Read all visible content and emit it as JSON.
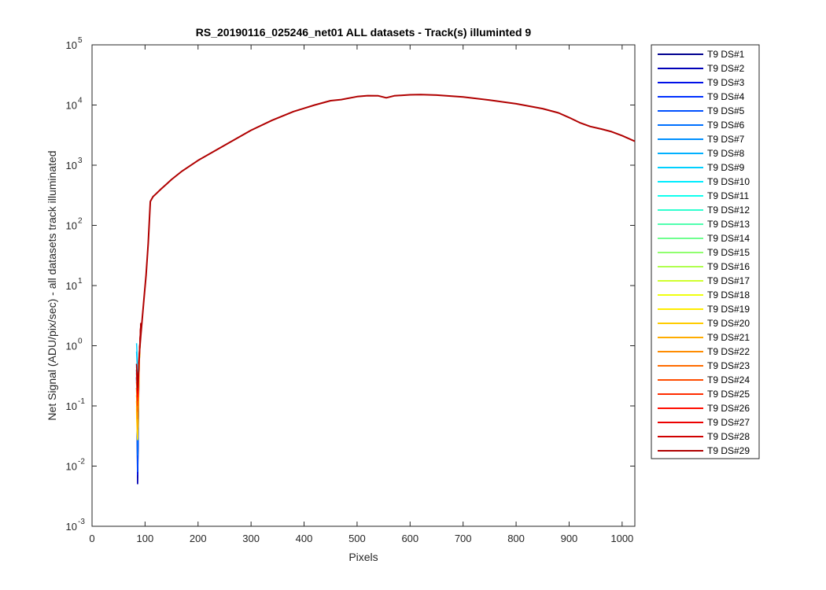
{
  "chart_data": {
    "type": "line",
    "title": "RS_20190116_025246_net01 ALL datasets - Track(s) illuminted 9",
    "xlabel": "Pixels",
    "ylabel": "Net Signal (ADU/pix/sec) - all datasets track illuminated",
    "xlim": [
      0,
      1024
    ],
    "ylim": [
      0.001,
      100000
    ],
    "yscale": "log",
    "grid": false,
    "legend_position": "outside-right",
    "x_ticks": [
      "0",
      "100",
      "200",
      "300",
      "400",
      "500",
      "600",
      "700",
      "800",
      "900",
      "1000"
    ],
    "y_tick_exponents": [
      "-3",
      "-2",
      "-1",
      "0",
      "1",
      "2",
      "3",
      "4",
      "5"
    ],
    "y_tick_base": "10",
    "main_curve": {
      "x": [
        88,
        90,
        92,
        95,
        98,
        102,
        106,
        110,
        115,
        120,
        130,
        140,
        150,
        170,
        200,
        230,
        260,
        300,
        340,
        380,
        420,
        450,
        470,
        500,
        520,
        540,
        555,
        570,
        600,
        620,
        650,
        700,
        750,
        800,
        850,
        880,
        900,
        920,
        940,
        960,
        980,
        1000,
        1024
      ],
      "y": [
        0.5,
        0.9,
        1.5,
        3,
        6,
        15,
        50,
        250,
        300,
        330,
        400,
        480,
        580,
        800,
        1200,
        1700,
        2400,
        3800,
        5600,
        7800,
        10000,
        11800,
        12300,
        13800,
        14300,
        14200,
        13200,
        14200,
        14800,
        14900,
        14600,
        13600,
        12100,
        10500,
        8700,
        7400,
        6200,
        5100,
        4400,
        4000,
        3600,
        3100,
        2500
      ]
    },
    "low_signal_segment": {
      "x": [
        84,
        85,
        86,
        87,
        88,
        89,
        90,
        91,
        92
      ],
      "y_by_dataset": [
        [
          0.3,
          0.05,
          0.005,
          0.02,
          0.15,
          0.6,
          0.9,
          1.4,
          2.2
        ],
        [
          0.4,
          0.06,
          0.005,
          0.03,
          0.2,
          0.5,
          0.8,
          1.3,
          2.1
        ],
        [
          0.3,
          0.1,
          0.007,
          0.04,
          0.25,
          0.6,
          0.9,
          1.4,
          2.2
        ],
        [
          0.5,
          0.2,
          0.01,
          0.05,
          0.3,
          0.6,
          0.9,
          1.5,
          2.3
        ],
        [
          0.2,
          0.08,
          0.008,
          0.03,
          0.2,
          0.5,
          0.8,
          1.3,
          2.1
        ],
        [
          0.3,
          0.12,
          0.015,
          0.06,
          0.25,
          0.55,
          0.85,
          1.4,
          2.2
        ],
        [
          0.5,
          0.3,
          0.05,
          0.1,
          0.3,
          0.6,
          0.9,
          1.4,
          2.2
        ],
        [
          0.8,
          0.5,
          0.08,
          0.2,
          0.4,
          0.6,
          0.9,
          1.4,
          2.2
        ],
        [
          1.1,
          0.7,
          0.1,
          0.25,
          0.45,
          0.65,
          0.9,
          1.4,
          2.2
        ],
        [
          0.4,
          0.15,
          0.03,
          0.09,
          0.3,
          0.6,
          0.9,
          1.4,
          2.2
        ],
        [
          0.35,
          0.12,
          0.04,
          0.08,
          0.28,
          0.55,
          0.85,
          1.4,
          2.2
        ],
        [
          0.3,
          0.2,
          0.05,
          0.1,
          0.3,
          0.6,
          0.9,
          1.4,
          2.2
        ],
        [
          0.25,
          0.15,
          0.06,
          0.12,
          0.3,
          0.6,
          0.9,
          1.4,
          2.2
        ],
        [
          0.2,
          0.12,
          0.05,
          0.1,
          0.28,
          0.58,
          0.88,
          1.4,
          2.2
        ],
        [
          0.18,
          0.1,
          0.04,
          0.09,
          0.27,
          0.56,
          0.86,
          1.4,
          2.2
        ],
        [
          0.15,
          0.08,
          0.035,
          0.08,
          0.25,
          0.55,
          0.85,
          1.4,
          2.2
        ],
        [
          0.12,
          0.06,
          0.03,
          0.07,
          0.23,
          0.53,
          0.83,
          1.35,
          2.15
        ],
        [
          0.1,
          0.05,
          0.03,
          0.06,
          0.2,
          0.5,
          0.8,
          1.3,
          2.1
        ],
        [
          0.08,
          0.04,
          0.027,
          0.05,
          0.18,
          0.48,
          0.78,
          1.3,
          2.1
        ],
        [
          0.09,
          0.05,
          0.03,
          0.06,
          0.2,
          0.5,
          0.8,
          1.3,
          2.1
        ],
        [
          0.12,
          0.07,
          0.04,
          0.08,
          0.22,
          0.52,
          0.82,
          1.35,
          2.15
        ],
        [
          0.15,
          0.1,
          0.06,
          0.1,
          0.25,
          0.55,
          0.85,
          1.4,
          2.2
        ],
        [
          0.2,
          0.13,
          0.08,
          0.12,
          0.28,
          0.58,
          0.88,
          1.4,
          2.2
        ],
        [
          0.25,
          0.18,
          0.1,
          0.15,
          0.3,
          0.6,
          0.9,
          1.45,
          2.25
        ],
        [
          0.3,
          0.22,
          0.12,
          0.18,
          0.33,
          0.62,
          0.92,
          1.45,
          2.25
        ],
        [
          0.35,
          0.25,
          0.14,
          0.2,
          0.35,
          0.65,
          0.95,
          1.5,
          2.3
        ],
        [
          0.4,
          0.28,
          0.16,
          0.22,
          0.38,
          0.68,
          0.98,
          1.5,
          2.3
        ],
        [
          0.45,
          0.3,
          0.18,
          0.25,
          0.4,
          0.7,
          1.0,
          1.55,
          2.35
        ],
        [
          0.5,
          0.32,
          0.2,
          0.28,
          0.42,
          0.72,
          1.0,
          1.6,
          2.4
        ]
      ]
    },
    "series": [
      {
        "name": "T9 DS#1",
        "color": "#00008f"
      },
      {
        "name": "T9 DS#2",
        "color": "#0000b8"
      },
      {
        "name": "T9 DS#3",
        "color": "#0010e8"
      },
      {
        "name": "T9 DS#4",
        "color": "#0030ff"
      },
      {
        "name": "T9 DS#5",
        "color": "#0050ff"
      },
      {
        "name": "T9 DS#6",
        "color": "#0070ff"
      },
      {
        "name": "T9 DS#7",
        "color": "#0090ff"
      },
      {
        "name": "T9 DS#8",
        "color": "#00b0ff"
      },
      {
        "name": "T9 DS#9",
        "color": "#00d0ff"
      },
      {
        "name": "T9 DS#10",
        "color": "#00ecff"
      },
      {
        "name": "T9 DS#11",
        "color": "#10ffef"
      },
      {
        "name": "T9 DS#12",
        "color": "#30ffcf"
      },
      {
        "name": "T9 DS#13",
        "color": "#50ffaf"
      },
      {
        "name": "T9 DS#14",
        "color": "#70ff8f"
      },
      {
        "name": "T9 DS#15",
        "color": "#90ff6f"
      },
      {
        "name": "T9 DS#16",
        "color": "#b0ff4f"
      },
      {
        "name": "T9 DS#17",
        "color": "#d0ff2f"
      },
      {
        "name": "T9 DS#18",
        "color": "#efff10"
      },
      {
        "name": "T9 DS#19",
        "color": "#ffec00"
      },
      {
        "name": "T9 DS#20",
        "color": "#ffcc00"
      },
      {
        "name": "T9 DS#21",
        "color": "#ffac00"
      },
      {
        "name": "T9 DS#22",
        "color": "#ff8c00"
      },
      {
        "name": "T9 DS#23",
        "color": "#ff6c00"
      },
      {
        "name": "T9 DS#24",
        "color": "#ff4c00"
      },
      {
        "name": "T9 DS#25",
        "color": "#ff2c00"
      },
      {
        "name": "T9 DS#26",
        "color": "#ff0c00"
      },
      {
        "name": "T9 DS#27",
        "color": "#ec0000"
      },
      {
        "name": "T9 DS#28",
        "color": "#d00000"
      },
      {
        "name": "T9 DS#29",
        "color": "#b00000"
      }
    ],
    "curve_color": "#b00000"
  }
}
